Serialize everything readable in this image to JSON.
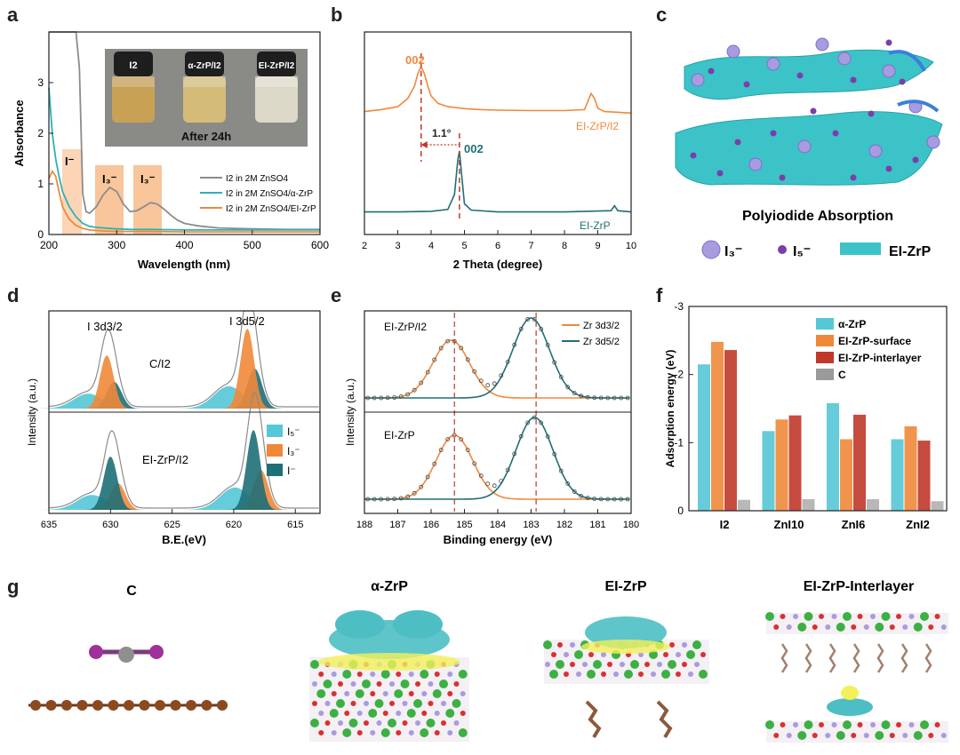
{
  "panel_letters": {
    "a": "a",
    "b": "b",
    "c": "c",
    "d": "d",
    "e": "e",
    "f": "f",
    "g": "g"
  },
  "colors": {
    "gray": "#8c8c8c",
    "teal": "#2ab3b5",
    "orange": "#f0883a",
    "dark_teal": "#1f6f77",
    "light_blue": "#55c7d6",
    "dark_red": "#c0392b",
    "band": "#f7b27a"
  },
  "panel_a": {
    "photo_labels": [
      "I2",
      "α-ZrP/I2",
      "EI-ZrP/I2"
    ],
    "photo_caption": "After  24h",
    "band_labels": [
      "I⁻",
      "I₃⁻",
      "I₃⁻"
    ]
  },
  "panel_b": {
    "peak_label_top": "002",
    "peak_label_bottom": "002",
    "shift_label": "1.1°"
  },
  "panel_c": {
    "title": "Polyiodide Absorption",
    "legend": [
      "I₃⁻",
      "I₅⁻",
      "EI-ZrP"
    ]
  },
  "panel_d": {
    "labels_top": [
      "I 3d3/2",
      "I 3d5/2",
      "C/I2"
    ],
    "label_bottom": "EI-ZrP/I2",
    "legend": [
      "I₅⁻",
      "I₃⁻",
      "I⁻"
    ]
  },
  "panel_e": {
    "label_top": "EI-ZrP/I2",
    "label_bottom": "EI-ZrP",
    "legend": [
      "Zr 3d3/2",
      "Zr 3d5/2"
    ]
  },
  "panel_g": {
    "titles": [
      "C",
      "α-ZrP",
      "EI-ZrP",
      "EI-ZrP-Interlayer"
    ]
  },
  "chart_data": [
    {
      "id": "a",
      "type": "line",
      "xlabel": "Wavelength (nm)",
      "ylabel": "Absorbance",
      "xlim": [
        200,
        600
      ],
      "ylim": [
        0,
        4
      ],
      "xticks": [
        200,
        300,
        400,
        500,
        600
      ],
      "yticks": [
        0,
        1,
        2,
        3
      ],
      "series": [
        {
          "name": "I2 in 2M ZnSO4",
          "color": "#8c8c8c",
          "x": [
            200,
            205,
            210,
            215,
            220,
            225,
            230,
            235,
            240,
            245,
            250,
            255,
            260,
            270,
            280,
            290,
            300,
            310,
            320,
            330,
            340,
            350,
            360,
            370,
            380,
            390,
            400,
            420,
            450,
            500,
            550,
            600
          ],
          "y": [
            4.0,
            4.0,
            4.0,
            4.0,
            4.0,
            4.0,
            4.0,
            4.0,
            4.0,
            3.3,
            0.8,
            0.45,
            0.42,
            0.55,
            0.78,
            0.93,
            0.85,
            0.6,
            0.45,
            0.47,
            0.55,
            0.63,
            0.6,
            0.5,
            0.38,
            0.28,
            0.22,
            0.17,
            0.13,
            0.11,
            0.1,
            0.1
          ]
        },
        {
          "name": "I2 in 2M ZnSO4/α-ZrP",
          "color": "#2ab3b5",
          "x": [
            200,
            205,
            210,
            215,
            220,
            230,
            240,
            250,
            260,
            270,
            280,
            290,
            300,
            320,
            350,
            400,
            450,
            500,
            550,
            600
          ],
          "y": [
            2.9,
            2.0,
            1.5,
            1.15,
            0.85,
            0.55,
            0.35,
            0.22,
            0.16,
            0.14,
            0.13,
            0.12,
            0.11,
            0.1,
            0.1,
            0.09,
            0.09,
            0.09,
            0.09,
            0.09
          ]
        },
        {
          "name": "I2 in 2M ZnSO4/EI-ZrP",
          "color": "#f0883a",
          "x": [
            200,
            205,
            210,
            215,
            220,
            230,
            240,
            250,
            260,
            280,
            300,
            350,
            400,
            500,
            600
          ],
          "y": [
            1.1,
            1.25,
            1.15,
            0.85,
            0.55,
            0.3,
            0.18,
            0.12,
            0.09,
            0.07,
            0.06,
            0.06,
            0.05,
            0.05,
            0.05
          ]
        }
      ]
    },
    {
      "id": "b",
      "type": "line",
      "xlabel": "2 Theta (degree)",
      "xlim": [
        2,
        10
      ],
      "xticks": [
        2,
        3,
        4,
        5,
        6,
        7,
        8,
        9,
        10
      ],
      "series": [
        {
          "name": "EI-ZrP/I2",
          "color": "#f0883a",
          "x": [
            2.0,
            2.5,
            3.0,
            3.3,
            3.5,
            3.6,
            3.7,
            3.8,
            3.9,
            4.0,
            4.2,
            4.5,
            5.0,
            5.5,
            6.0,
            7.0,
            8.0,
            8.6,
            8.8,
            8.9,
            9.0,
            9.2,
            10.0
          ],
          "y": [
            0.08,
            0.12,
            0.18,
            0.35,
            0.6,
            0.85,
            1.0,
            0.85,
            0.6,
            0.4,
            0.25,
            0.18,
            0.14,
            0.12,
            0.11,
            0.1,
            0.1,
            0.12,
            0.45,
            0.35,
            0.15,
            0.08,
            0.05
          ]
        },
        {
          "name": "EI-ZrP",
          "color": "#1f6f77",
          "x": [
            2.0,
            3.0,
            4.0,
            4.5,
            4.7,
            4.8,
            4.85,
            4.9,
            5.0,
            5.2,
            6.0,
            8.0,
            9.4,
            9.5,
            9.6,
            10.0
          ],
          "y": [
            0.02,
            0.02,
            0.03,
            0.06,
            0.3,
            0.85,
            1.0,
            0.7,
            0.15,
            0.05,
            0.02,
            0.02,
            0.04,
            0.12,
            0.04,
            0.02
          ]
        }
      ]
    },
    {
      "id": "d",
      "type": "line",
      "xlabel": "B.E.(eV)",
      "ylabel": "Intensity (a.u.)",
      "xlim": [
        635,
        613
      ],
      "xticks": [
        635,
        630,
        625,
        620,
        615
      ],
      "series": [
        {
          "name": "C/I2",
          "peaks": [
            630.3,
            618.9
          ]
        },
        {
          "name": "EI-ZrP/I2",
          "peaks": [
            630.0,
            618.4
          ]
        }
      ]
    },
    {
      "id": "e",
      "type": "line",
      "xlabel": "Binding energy (eV)",
      "ylabel": "Intensity (a.u.)",
      "xlim": [
        188,
        180
      ],
      "xticks": [
        188,
        187,
        186,
        185,
        184,
        183,
        182,
        181,
        180
      ],
      "series": [
        {
          "name": "Zr 3d3/2",
          "color": "#f0883a",
          "peaks": [
            185.4,
            185.3
          ]
        },
        {
          "name": "Zr 3d5/2",
          "color": "#1f6f77",
          "peaks": [
            183.0,
            182.9
          ]
        }
      ]
    },
    {
      "id": "f",
      "type": "bar",
      "ylabel": "Adsorption energy (eV)",
      "ylim": [
        0,
        -3
      ],
      "yticks": [
        0,
        -1,
        -2,
        -3
      ],
      "categories": [
        "I2",
        "ZnI10",
        "ZnI6",
        "ZnI2"
      ],
      "series": [
        {
          "name": "α-ZrP",
          "color": "#55c7d6",
          "values": [
            -2.15,
            -1.17,
            -1.58,
            -1.05
          ]
        },
        {
          "name": "EI-ZrP-surface",
          "color": "#f0883a",
          "values": [
            -2.48,
            -1.34,
            -1.05,
            -1.24
          ]
        },
        {
          "name": "EI-ZrP-interlayer",
          "color": "#c0392b",
          "values": [
            -2.36,
            -1.4,
            -1.41,
            -1.03
          ]
        },
        {
          "name": "C",
          "color": "#9a9a9a",
          "values": [
            -0.16,
            -0.17,
            -0.17,
            -0.14
          ]
        }
      ]
    }
  ]
}
